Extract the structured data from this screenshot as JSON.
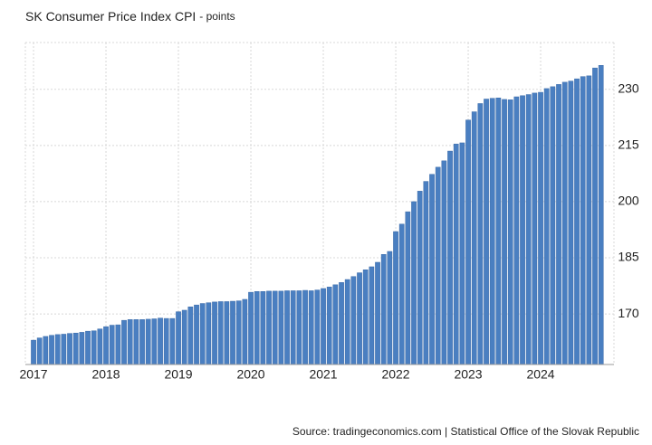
{
  "chart_data": {
    "type": "bar",
    "title": "SK Consumer Price Index CPI",
    "subtitle": "- points",
    "source": "Source: tradingeconomics.com | Statistical Office of the Slovak Republic",
    "categories": [
      "2017",
      null,
      null,
      null,
      null,
      null,
      null,
      null,
      null,
      null,
      null,
      null,
      "2018",
      null,
      null,
      null,
      null,
      null,
      null,
      null,
      null,
      null,
      null,
      null,
      "2019",
      null,
      null,
      null,
      null,
      null,
      null,
      null,
      null,
      null,
      null,
      null,
      "2020",
      null,
      null,
      null,
      null,
      null,
      null,
      null,
      null,
      null,
      null,
      null,
      "2021",
      null,
      null,
      null,
      null,
      null,
      null,
      null,
      null,
      null,
      null,
      null,
      "2022",
      null,
      null,
      null,
      null,
      null,
      null,
      null,
      null,
      null,
      null,
      null,
      "2023",
      null,
      null,
      null,
      null,
      null,
      null,
      null,
      null,
      null,
      null,
      null,
      "2024",
      null,
      null,
      null,
      null,
      null,
      null,
      null,
      null,
      null,
      null
    ],
    "values": [
      163.0,
      163.6,
      164.0,
      164.3,
      164.5,
      164.6,
      164.8,
      164.9,
      165.1,
      165.4,
      165.5,
      166.0,
      166.6,
      167.0,
      167.1,
      168.3,
      168.5,
      168.5,
      168.5,
      168.6,
      168.7,
      168.9,
      168.8,
      168.8,
      170.6,
      171.0,
      171.9,
      172.4,
      172.8,
      173.0,
      173.2,
      173.3,
      173.3,
      173.4,
      173.5,
      173.9,
      175.8,
      176.0,
      176.0,
      176.1,
      176.1,
      176.1,
      176.2,
      176.2,
      176.2,
      176.3,
      176.2,
      176.4,
      176.8,
      177.2,
      177.8,
      178.4,
      179.2,
      180.0,
      181.0,
      181.8,
      182.6,
      183.8,
      185.9,
      186.7,
      192.0,
      194.0,
      197.3,
      200.0,
      202.8,
      205.4,
      207.3,
      209.2,
      210.9,
      213.5,
      215.4,
      215.7,
      221.8,
      224.0,
      226.2,
      227.4,
      227.6,
      227.7,
      227.3,
      227.2,
      228.0,
      228.3,
      228.6,
      229.0,
      229.2,
      230.2,
      230.7,
      231.3,
      231.9,
      232.2,
      232.8,
      233.4,
      233.6,
      235.7,
      236.4
    ],
    "color": "#4a7fc1",
    "ylim": [
      156.5,
      242.5
    ],
    "yticks": [
      170,
      185,
      200,
      215,
      230
    ],
    "grid": true
  }
}
